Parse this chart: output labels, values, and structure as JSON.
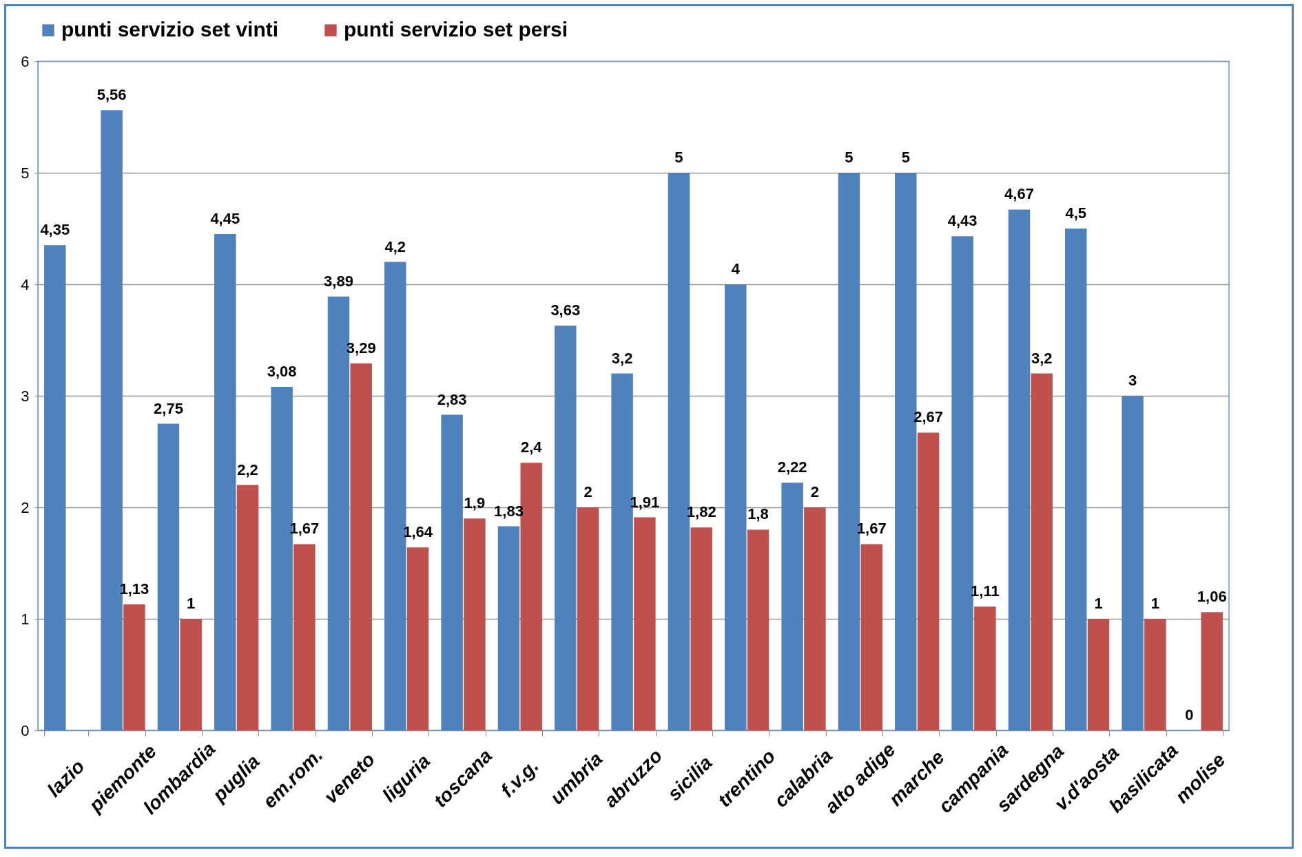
{
  "chart_data": {
    "type": "bar",
    "categories": [
      "lazio",
      "piemonte",
      "lombardia",
      "puglia",
      "em.rom.",
      "veneto",
      "liguria",
      "toscana",
      "f.v.g.",
      "umbria",
      "abruzzo",
      "sicilia",
      "trentino",
      "calabria",
      "alto adige",
      "marche",
      "campania",
      "sardegna",
      "v.d'aosta",
      "basilicata",
      "molise"
    ],
    "series": [
      {
        "name": "punti servizio set vinti",
        "color": "#4f81bd",
        "values": [
          4.35,
          5.56,
          2.75,
          4.45,
          3.08,
          3.89,
          4.2,
          2.83,
          1.83,
          3.63,
          3.2,
          5,
          4,
          2.22,
          5,
          5,
          4.43,
          4.67,
          4.5,
          3,
          0
        ],
        "value_labels": [
          "4,35",
          "5,56",
          "2,75",
          "4,45",
          "3,08",
          "3,89",
          "4,2",
          "2,83",
          "1,83",
          "3,63",
          "3,2",
          "5",
          "4",
          "2,22",
          "5",
          "5",
          "4,43",
          "4,67",
          "4,5",
          "3",
          "0"
        ]
      },
      {
        "name": "punti servizio set persi",
        "color": "#c0504d",
        "values": [
          null,
          1.13,
          1,
          2.2,
          1.67,
          3.29,
          1.64,
          1.9,
          2.4,
          2,
          1.91,
          1.82,
          1.8,
          2,
          1.67,
          2.67,
          1.11,
          3.2,
          1,
          1,
          1.06
        ],
        "value_labels": [
          null,
          "1,13",
          "1",
          "2,2",
          "1,67",
          "3,29",
          "1,64",
          "1,9",
          "2,4",
          "2",
          "1,91",
          "1,82",
          "1,8",
          "2",
          "1,67",
          "2,67",
          "1,11",
          "3,2",
          "1",
          "1",
          "1,06"
        ]
      }
    ],
    "ylim": [
      0,
      6
    ],
    "yticks": [
      0,
      1,
      2,
      3,
      4,
      5,
      6
    ],
    "grid": "y",
    "legend": "top"
  }
}
